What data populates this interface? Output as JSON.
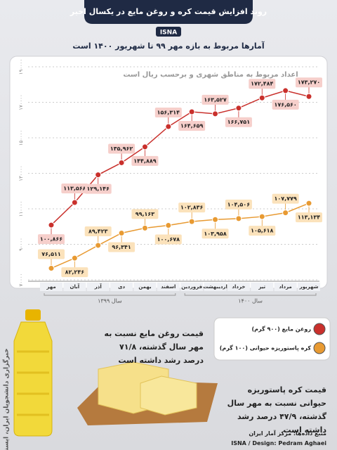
{
  "header": {
    "title": "روند افزایش قیمت کره و روغن مایع در یکسال اخیر",
    "agency": "ISNA",
    "subtitle": "آمارها مربوط به بازه مهر ۹۹ تا شهریور ۱۴۰۰ است"
  },
  "chart_data": {
    "type": "line",
    "note": "اعداد مربوط به مناطق شهری و برحسب ریال است",
    "categories": [
      "مهر",
      "آبان",
      "آذر",
      "دی",
      "بهمن",
      "اسفند",
      "فروردین",
      "اردیبهشت",
      "خرداد",
      "تیر",
      "مرداد",
      "شهریور"
    ],
    "year_labels": [
      "سال ۱۳۹۹",
      "سال ۱۴۰۰"
    ],
    "series": [
      {
        "name": "روغن مایع (۹۰۰ گرم)",
        "color": "#c9302c",
        "values": [
          100866,
          113568,
          129146,
          135962,
          144889,
          156314,
          164659,
          163527,
          166751,
          172484,
          176560,
          173270
        ],
        "value_labels": [
          "۱۰۰,۸۶۶",
          "۱۱۳,۵۶۸",
          "۱۲۹,۱۴۶",
          "۱۳۵,۹۶۲",
          "۱۴۴,۸۸۹",
          "۱۵۶,۳۱۴",
          "۱۶۴,۶۵۹",
          "۱۶۳,۵۲۷",
          "۱۶۶,۷۵۱",
          "۱۷۲,۴۸۴",
          "۱۷۶,۵۶۰",
          "۱۷۳,۲۷۰"
        ]
      },
      {
        "name": "کره پاستوریزه حیوانی (۱۰۰ گرم)",
        "color": "#e89a32",
        "values": [
          76511,
          82246,
          89423,
          96341,
          99163,
          100678,
          102836,
          103958,
          104506,
          105618,
          107779,
          113134
        ],
        "value_labels": [
          "۷۶,۵۱۱",
          "۸۲,۲۴۶",
          "۸۹,۴۲۳",
          "۹۶,۳۴۱",
          "۹۹,۱۶۳",
          "۱۰۰,۶۷۸",
          "۱۰۲,۸۳۶",
          "۱۰۳,۹۵۸",
          "۱۰۴,۵۰۶",
          "۱۰۵,۶۱۸",
          "۱۰۷,۷۷۹",
          "۱۱۳,۱۳۴"
        ]
      }
    ],
    "ylim": [
      70000,
      190000
    ],
    "yticks": [
      {
        "value": 70000,
        "label": "۷۰۰۰۰"
      },
      {
        "value": 90000,
        "label": "۹۰۰۰۰"
      },
      {
        "value": 110000,
        "label": "۱۱۰۰۰۰"
      },
      {
        "value": 130000,
        "label": "۱۳۰۰۰۰"
      },
      {
        "value": 150000,
        "label": "۱۵۰۰۰۰"
      },
      {
        "value": 170000,
        "label": "۱۷۰۰۰۰"
      },
      {
        "value": 190000,
        "label": "۱۹۰۰۰۰"
      }
    ],
    "grid": true
  },
  "notes": [
    "قیمت روغن مایع نسبت به مهر سال گذشته، ۷۱/۸ درصد رشد داشته است",
    "قیمت کره پاستوریزه حیوانی نسبت به مهر سال گذشته، ۴۷/۹ درصد رشد داشته است"
  ],
  "footer": {
    "source": "منبع داده‌ها: مرکز آمار ایران",
    "credit": "ISNA / Design: Pedram Aghaei",
    "watermark": "خبرگزاری دانشجویان ایران، ایسنا"
  }
}
